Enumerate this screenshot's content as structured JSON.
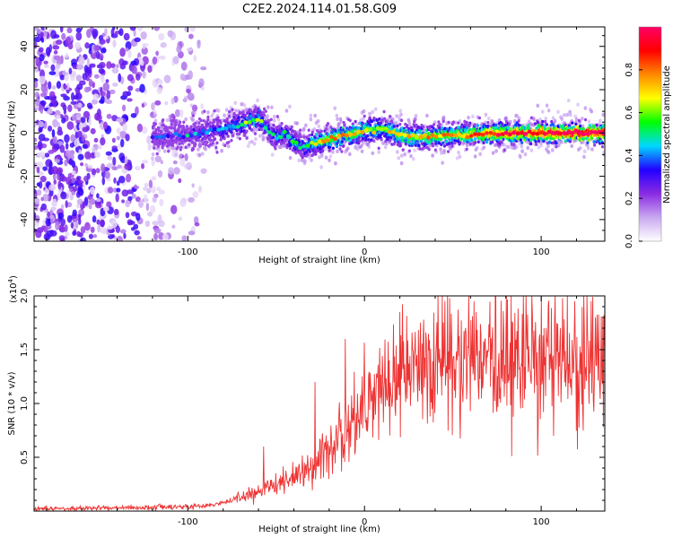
{
  "title": "C2E2.2024.114.01.58.G09",
  "chart_data": [
    {
      "type": "heatmap",
      "xlabel": "Height of straight line (km)",
      "ylabel": "Frequency (Hz)",
      "xlim": [
        -187,
        136
      ],
      "ylim": [
        -50,
        49
      ],
      "x_ticks": [
        -100,
        0,
        100
      ],
      "x_tick_labels": [
        "-100",
        "0",
        "100"
      ],
      "y_ticks": [
        -40,
        -20,
        0,
        20,
        40
      ],
      "y_tick_labels": [
        "-40",
        "-20",
        "0",
        "20",
        "40"
      ],
      "colorbar": {
        "label": "Normalized spectral amplitude",
        "range": [
          0,
          1
        ],
        "ticks": [
          0,
          0.2,
          0.4,
          0.6,
          0.8
        ],
        "tick_labels": [
          "0.0",
          "0.2",
          "0.4",
          "0.6",
          "0.8"
        ],
        "colormap": [
          "#ffffff",
          "#c9a8f0",
          "#8a2be2",
          "#2200ff",
          "#00d8ff",
          "#00ff00",
          "#ffff00",
          "#ff8800",
          "#ff0000",
          "#ff0066"
        ]
      },
      "noise_region_x": [
        -187,
        -90
      ],
      "signal_start_x": -120,
      "ridge": {
        "x": [
          -120,
          -100,
          -80,
          -70,
          -60,
          -55,
          -50,
          -45,
          -40,
          -35,
          -30,
          -25,
          -20,
          -10,
          0,
          10,
          20,
          30,
          50,
          70,
          90,
          110,
          136
        ],
        "frequency": [
          -2,
          -1,
          2,
          4,
          7,
          2,
          -2,
          0,
          -4,
          -7,
          -5,
          -4,
          -3,
          -1,
          1,
          2,
          -1,
          -2,
          -1,
          -0.5,
          0,
          0,
          0
        ],
        "amplitude": [
          0.2,
          0.25,
          0.35,
          0.4,
          0.45,
          0.38,
          0.35,
          0.4,
          0.45,
          0.35,
          0.5,
          0.58,
          0.62,
          0.62,
          0.58,
          0.55,
          0.6,
          0.62,
          0.65,
          0.75,
          0.85,
          0.92,
          0.95
        ]
      }
    },
    {
      "type": "line",
      "xlabel": "Height of straight line (km)",
      "ylabel": "SNR (10 * v/v)",
      "y_scale_label": "(x10^4)",
      "xlim": [
        -187,
        136
      ],
      "ylim": [
        0,
        2.0
      ],
      "x_ticks": [
        -100,
        0,
        100
      ],
      "x_tick_labels": [
        "-100",
        "0",
        "100"
      ],
      "y_ticks": [
        0.5,
        1.0,
        1.5,
        2.0
      ],
      "y_tick_labels": [
        "0.5",
        "1.0",
        "1.5",
        "2.0"
      ],
      "color": "#ee3333",
      "envelope": {
        "x": [
          -187,
          -100,
          -90,
          -80,
          -60,
          -50,
          -40,
          -30,
          -20,
          -10,
          0,
          10,
          20,
          30,
          40,
          60,
          80,
          100,
          120,
          136
        ],
        "y": [
          0.02,
          0.04,
          0.05,
          0.08,
          0.18,
          0.25,
          0.32,
          0.42,
          0.58,
          0.78,
          0.95,
          1.1,
          1.25,
          1.35,
          1.42,
          1.38,
          1.42,
          1.38,
          1.4,
          1.35
        ]
      },
      "peaks": [
        {
          "x": -57,
          "y": 0.6
        },
        {
          "x": -28,
          "y": 1.2
        },
        {
          "x": -11,
          "y": 1.6
        },
        {
          "x": 20,
          "y": 1.85
        },
        {
          "x": 47,
          "y": 2.0
        },
        {
          "x": 62,
          "y": 1.95
        },
        {
          "x": 95,
          "y": 1.85
        },
        {
          "x": 135,
          "y": 1.8
        }
      ]
    }
  ]
}
